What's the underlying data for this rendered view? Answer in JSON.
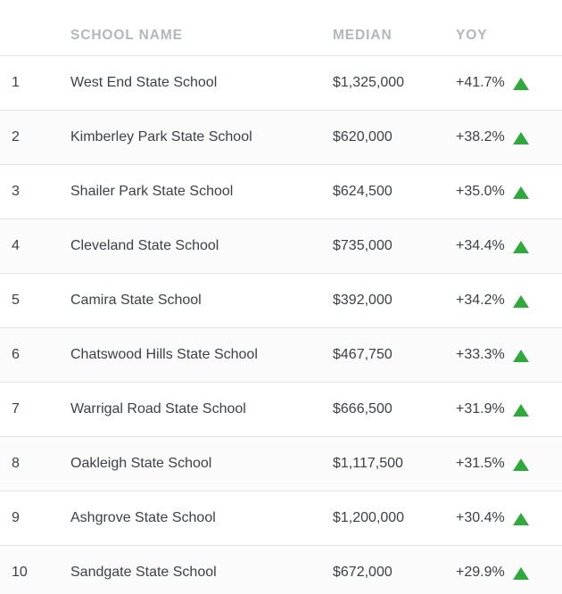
{
  "headers": {
    "rank": "",
    "name": "SCHOOL NAME",
    "median": "MEDIAN",
    "yoy": "YOY"
  },
  "colors": {
    "up_arrow": "#2eaa3a",
    "header_text": "#b3b6bb",
    "row_divider": "#e4e4e7"
  },
  "rows": [
    {
      "rank": "1",
      "name": "West End State School",
      "median": "$1,325,000",
      "yoy": "+41.7%",
      "trend_icon": "up-triangle-icon"
    },
    {
      "rank": "2",
      "name": "Kimberley Park State School",
      "median": "$620,000",
      "yoy": "+38.2%",
      "trend_icon": "up-triangle-icon"
    },
    {
      "rank": "3",
      "name": "Shailer Park State School",
      "median": "$624,500",
      "yoy": "+35.0%",
      "trend_icon": "up-triangle-icon"
    },
    {
      "rank": "4",
      "name": "Cleveland State School",
      "median": "$735,000",
      "yoy": "+34.4%",
      "trend_icon": "up-triangle-icon"
    },
    {
      "rank": "5",
      "name": "Camira State School",
      "median": "$392,000",
      "yoy": "+34.2%",
      "trend_icon": "up-triangle-icon"
    },
    {
      "rank": "6",
      "name": "Chatswood Hills State School",
      "median": "$467,750",
      "yoy": "+33.3%",
      "trend_icon": "up-triangle-icon"
    },
    {
      "rank": "7",
      "name": "Warrigal Road State School",
      "median": "$666,500",
      "yoy": "+31.9%",
      "trend_icon": "up-triangle-icon"
    },
    {
      "rank": "8",
      "name": "Oakleigh State School",
      "median": "$1,117,500",
      "yoy": "+31.5%",
      "trend_icon": "up-triangle-icon"
    },
    {
      "rank": "9",
      "name": "Ashgrove State School",
      "median": "$1,200,000",
      "yoy": "+30.4%",
      "trend_icon": "up-triangle-icon"
    },
    {
      "rank": "10",
      "name": "Sandgate State School",
      "median": "$672,000",
      "yoy": "+29.9%",
      "trend_icon": "up-triangle-icon"
    }
  ]
}
